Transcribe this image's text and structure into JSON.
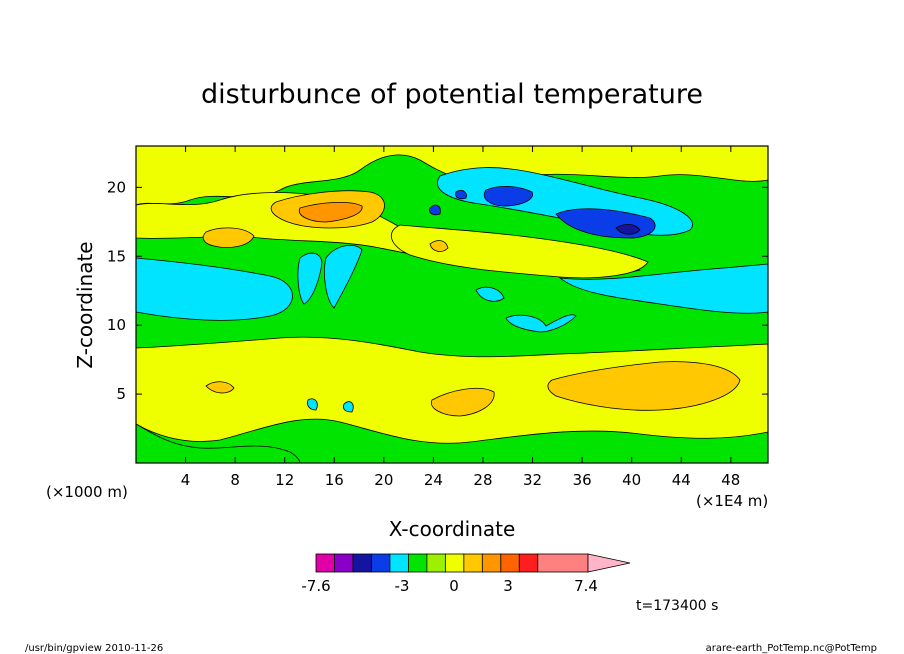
{
  "chart_data": {
    "type": "heatmap",
    "title": "disturbunce of potential temperature",
    "xlabel": "X-coordinate",
    "ylabel": "Z-coordinate",
    "x_unit": "(×1E4 m)",
    "y_unit": "(×1000 m)",
    "xlim": [
      0,
      51
    ],
    "ylim": [
      0,
      23
    ],
    "x_ticks": [
      4,
      8,
      12,
      16,
      20,
      24,
      28,
      32,
      36,
      40,
      44,
      48
    ],
    "y_ticks": [
      5,
      10,
      15,
      20
    ],
    "grid": false,
    "colorbar": {
      "range": [
        -7.6,
        7.4
      ],
      "labels": [
        "-7.6",
        "-3",
        "0",
        "3",
        "7.4"
      ],
      "label_values": [
        -7.6,
        -3,
        0,
        3,
        7.4
      ],
      "colors": [
        "#e000a8",
        "#8a00c8",
        "#1414a0",
        "#0a3ce8",
        "#00e4ff",
        "#00e400",
        "#9cf000",
        "#f0ff00",
        "#ffc800",
        "#ff9600",
        "#ff6400",
        "#ff1e1e",
        "#ff8080",
        "#ffb4c8"
      ],
      "bounds": [
        -7.6,
        -6.5,
        -5,
        -4,
        -3,
        -1.5,
        0,
        0.75,
        1.5,
        3,
        4,
        5,
        5.5,
        7.4,
        8.2
      ]
    },
    "field_description_levels": {
      "background": "#00e400",
      "positive_weak": "#f0ff00",
      "positive_mid": "#ffc800",
      "positive_strong": "#ff9600",
      "negative_weak": "#00e4ff",
      "negative_mid": "#0a3ce8",
      "negative_strong": "#1414a0"
    },
    "time_label": "t=173400 s"
  },
  "footer": {
    "left": "/usr/bin/gpview  2010-11-26",
    "right": "arare-earth_PotTemp.nc@PotTemp"
  }
}
